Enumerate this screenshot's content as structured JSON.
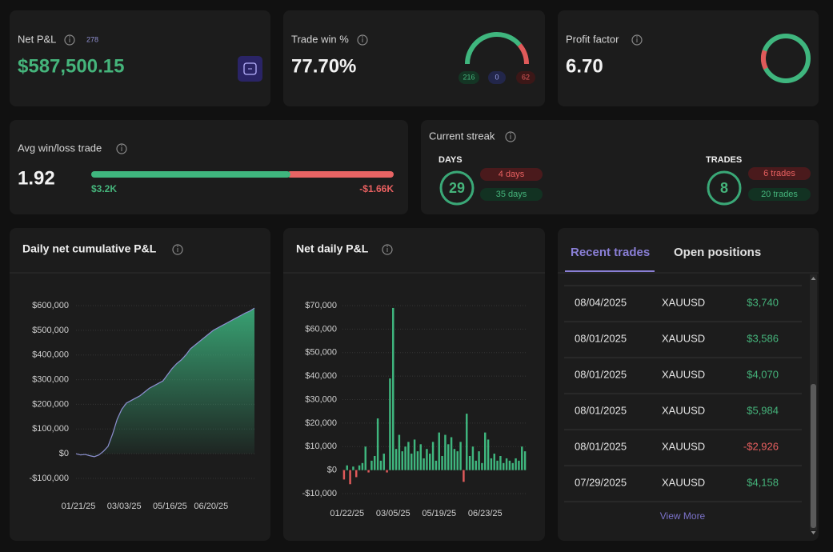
{
  "net_pnl": {
    "label": "Net P&L",
    "trade_count": 278,
    "value": "$587,500.15"
  },
  "trade_win": {
    "label": "Trade win %",
    "value": "77.70%",
    "wins": 216,
    "breakeven": 0,
    "losses": 62
  },
  "profit_factor": {
    "label": "Profit factor",
    "value": {
      "value": 6.7,
      "label": "6.70"
    }
  },
  "avg_win_loss": {
    "label": "Avg win/loss trade",
    "value": "1.92",
    "avg_win": {
      "value": 3200,
      "label": "$3.2K"
    },
    "avg_loss": {
      "value": -1660,
      "label": "-$1.66K"
    }
  },
  "streak": {
    "label": "Current streak",
    "days": {
      "label": "DAYS",
      "value": 29,
      "loss": "4 days",
      "win": "35 days"
    },
    "trades": {
      "label": "TRADES",
      "value": 8,
      "loss": "6 trades",
      "win": "20 trades"
    }
  },
  "chart_data": [
    {
      "type": "area",
      "title": "Daily net cumulative P&L",
      "color": "#3aa877",
      "line_color": "#8d8fd0",
      "categories": [
        "01/21/25",
        null,
        null,
        null,
        null,
        null,
        null,
        null,
        null,
        null,
        "03/03/25",
        null,
        null,
        null,
        null,
        null,
        null,
        null,
        null,
        null,
        "05/16/25",
        null,
        null,
        null,
        null,
        null,
        null,
        null,
        null,
        "06/20/25",
        null,
        null,
        null,
        null,
        null,
        null,
        null,
        null,
        null,
        null
      ],
      "values": [
        0,
        -5000,
        -3000,
        -8000,
        -12000,
        -5000,
        10000,
        30000,
        80000,
        140000,
        180000,
        205000,
        215000,
        225000,
        235000,
        250000,
        265000,
        275000,
        285000,
        295000,
        320000,
        345000,
        365000,
        380000,
        400000,
        425000,
        440000,
        455000,
        470000,
        485000,
        500000,
        510000,
        520000,
        530000,
        540000,
        550000,
        560000,
        570000,
        578000,
        590000
      ],
      "ylim": [
        -100000,
        600000
      ],
      "yticks": [
        {
          "value": -100000,
          "label": "-$100,000"
        },
        {
          "value": 0,
          "label": "$0"
        },
        {
          "value": 100000,
          "label": "$100,000"
        },
        {
          "value": 200000,
          "label": "$200,000"
        },
        {
          "value": 300000,
          "label": "$300,000"
        },
        {
          "value": 400000,
          "label": "$400,000"
        },
        {
          "value": 500000,
          "label": "$500,000"
        },
        {
          "value": 600000,
          "label": "$600,000"
        }
      ],
      "grid": true
    },
    {
      "type": "bar",
      "title": "Net daily P&L",
      "color": "#3fb67e",
      "negative_color": "#e05a5a",
      "categories": [
        null,
        "01/22/25",
        null,
        null,
        null,
        null,
        null,
        null,
        null,
        null,
        null,
        null,
        null,
        null,
        null,
        null,
        "03/05/25",
        null,
        null,
        null,
        null,
        null,
        null,
        null,
        null,
        null,
        null,
        null,
        null,
        null,
        null,
        "05/19/25",
        null,
        null,
        null,
        null,
        null,
        null,
        null,
        null,
        null,
        null,
        null,
        null,
        null,
        null,
        "06/23/25",
        null,
        null,
        null,
        null,
        null,
        null,
        null,
        null,
        null,
        null,
        null,
        null,
        null
      ],
      "values": [
        -4000,
        2000,
        -6000,
        1500,
        -3000,
        2000,
        3000,
        10000,
        -1000,
        4000,
        6000,
        22000,
        4000,
        7000,
        -1000,
        39000,
        69000,
        9000,
        15000,
        8000,
        10000,
        12000,
        7000,
        13000,
        8000,
        11000,
        5000,
        9000,
        7000,
        12000,
        4000,
        16000,
        6000,
        15000,
        11000,
        14000,
        9000,
        8000,
        12000,
        -5000,
        24000,
        6000,
        10000,
        4000,
        8000,
        3000,
        16000,
        13000,
        5000,
        7000,
        4000,
        6000,
        3000,
        5000,
        4000,
        3000,
        5000,
        4000,
        10000,
        8000
      ],
      "ylim": [
        -10000,
        70000
      ],
      "yticks": [
        {
          "value": -10000,
          "label": "-$10,000"
        },
        {
          "value": 0,
          "label": "$0"
        },
        {
          "value": 10000,
          "label": "$10,000"
        },
        {
          "value": 20000,
          "label": "$20,000"
        },
        {
          "value": 30000,
          "label": "$30,000"
        },
        {
          "value": 40000,
          "label": "$40,000"
        },
        {
          "value": 50000,
          "label": "$50,000"
        },
        {
          "value": 60000,
          "label": "$60,000"
        },
        {
          "value": 70000,
          "label": "$70,000"
        }
      ],
      "grid": true
    }
  ],
  "trades_panel": {
    "tabs": [
      "Recent trades",
      "Open positions"
    ],
    "rows": [
      [
        "08/04/2025",
        "XAUUSD",
        "$3,740"
      ],
      [
        "08/01/2025",
        "XAUUSD",
        "$3,586"
      ],
      [
        "08/01/2025",
        "XAUUSD",
        "$4,070"
      ],
      [
        "08/01/2025",
        "XAUUSD",
        "$5,984"
      ],
      [
        "08/01/2025",
        "XAUUSD",
        "-$2,926"
      ],
      [
        "07/29/2025",
        "XAUUSD",
        "$4,158"
      ]
    ],
    "more": "View More"
  }
}
